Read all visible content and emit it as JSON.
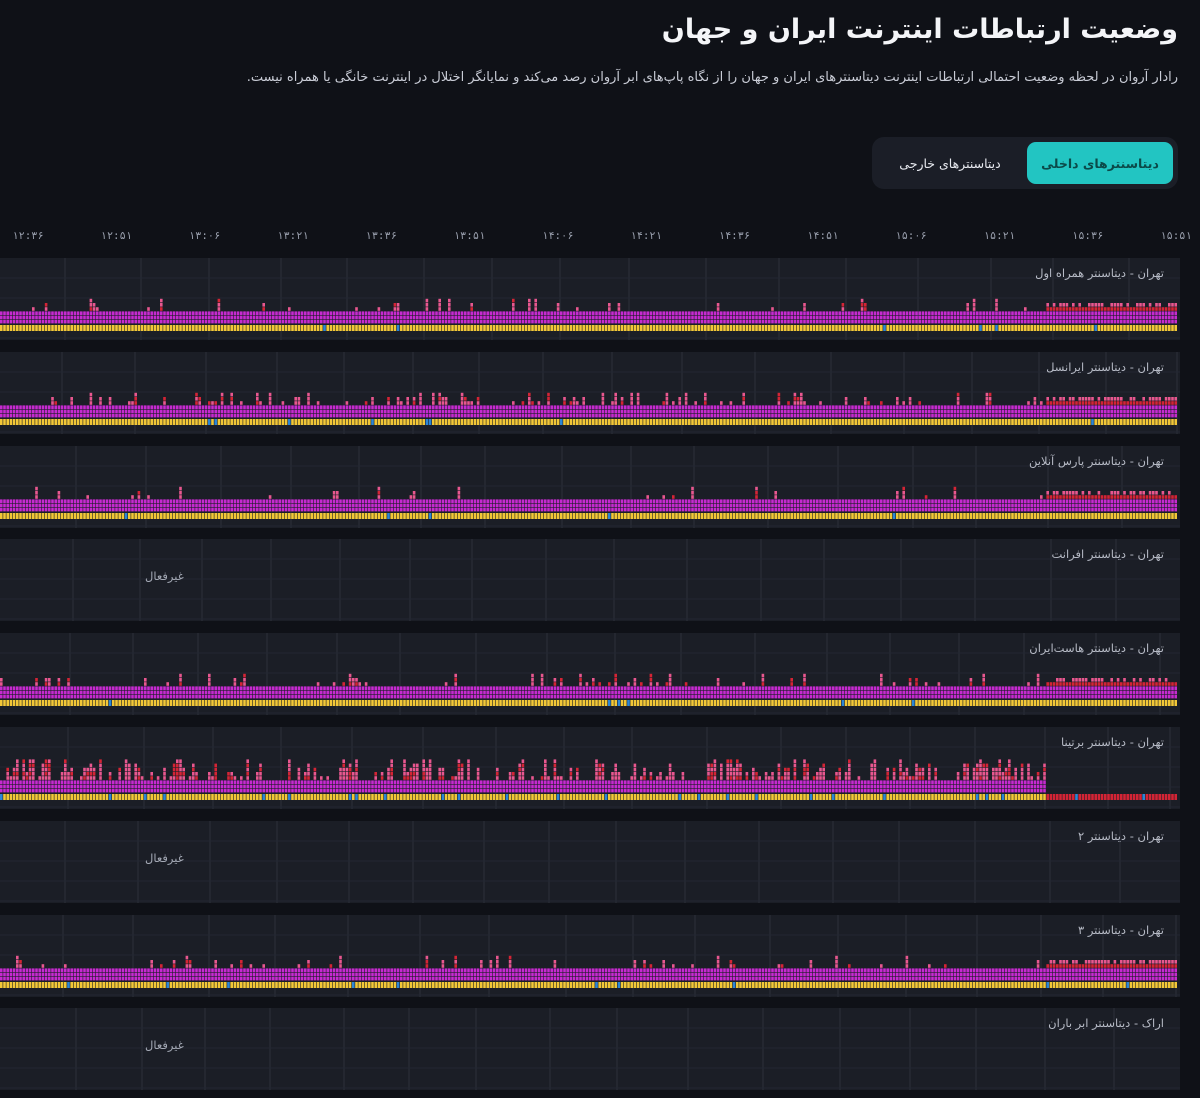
{
  "header": {
    "title": "وضعیت ارتباطات اینترنت ایران و جهان",
    "subtitle": "رادار آروان در لحظه وضعیت احتمالی ارتباطات اینترنت دیتاسنترهای ایران و جهان را از نگاه پاپ‌های ابر آروان رصد می‌کند و نمایانگر اختلال در اینترنت خانگی یا همراه نیست."
  },
  "tabs": {
    "internal": "دیتاسنترهای داخلی",
    "external": "دیتاسنترهای خارجی",
    "active": "internal"
  },
  "time_axis": [
    "۱۲:۳۶",
    "۱۲:۵۱",
    "۱۳:۰۶",
    "۱۳:۲۱",
    "۱۳:۳۶",
    "۱۳:۵۱",
    "۱۴:۰۶",
    "۱۴:۲۱",
    "۱۴:۳۶",
    "۱۴:۵۱",
    "۱۵:۰۶",
    "۱۵:۲۱",
    "۱۵:۳۶",
    "۱۵:۵۱"
  ],
  "colors": {
    "background": "#0f1117",
    "panel": "#1b1e26",
    "accent": "#22c5c2",
    "magenta": "#c62ad0",
    "pink": "#e8578f",
    "red": "#d42435",
    "yellow": "#f2c737",
    "blue": "#2c86d6"
  },
  "datacenters": [
    {
      "label": "تهران - دیتاسنتر همراه اول",
      "status": "active",
      "inactive_text": "",
      "seed": 11,
      "profile": "calm"
    },
    {
      "label": "تهران - دیتاسنتر ایرانسل",
      "status": "active",
      "inactive_text": "",
      "seed": 23,
      "profile": "busy"
    },
    {
      "label": "تهران - دیتاسنتر پارس آنلاین",
      "status": "active",
      "inactive_text": "",
      "seed": 37,
      "profile": "calm"
    },
    {
      "label": "تهران - دیتاسنتر افرانت",
      "status": "inactive",
      "inactive_text": "غیرفعال",
      "seed": 0,
      "profile": "none"
    },
    {
      "label": "تهران - دیتاسنتر هاست‌ایران",
      "status": "active",
      "inactive_text": "",
      "seed": 41,
      "profile": "medium"
    },
    {
      "label": "تهران - دیتاسنتر برتینا",
      "status": "active",
      "inactive_text": "",
      "seed": 53,
      "profile": "noisy"
    },
    {
      "label": "تهران - دیتاسنتر ۲",
      "status": "inactive",
      "inactive_text": "غیرفعال",
      "seed": 0,
      "profile": "none"
    },
    {
      "label": "تهران - دیتاسنتر ۳",
      "status": "active",
      "inactive_text": "",
      "seed": 67,
      "profile": "calm"
    },
    {
      "label": "اراک - دیتاسنتر ابر باران",
      "status": "inactive",
      "inactive_text": "غیرفعال",
      "seed": 0,
      "profile": "none"
    }
  ]
}
